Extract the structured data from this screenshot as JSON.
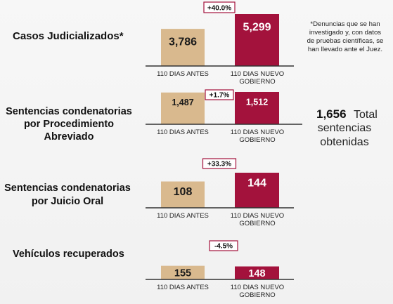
{
  "chart_data": [
    {
      "type": "bar",
      "title": "Casos Judicializados*",
      "categories": [
        "110 DIAS ANTES",
        "110 DIAS NUEVO GOBIERNO"
      ],
      "values": [
        3786,
        5299
      ],
      "value_labels": [
        "3,786",
        "5,299"
      ],
      "change_label": "+40.0%"
    },
    {
      "type": "bar",
      "title": "Sentencias condenatorias por Procedimiento Abreviado",
      "categories": [
        "110 DIAS ANTES",
        "110 DIAS NUEVO GOBIERNO"
      ],
      "values": [
        1487,
        1512
      ],
      "value_labels": [
        "1,487",
        "1,512"
      ],
      "change_label": "+1.7%"
    },
    {
      "type": "bar",
      "title": "Sentencias condenatorias por Juicio Oral",
      "categories": [
        "110 DIAS ANTES",
        "110 DIAS NUEVO GOBIERNO"
      ],
      "values": [
        108,
        144
      ],
      "value_labels": [
        "108",
        "144"
      ],
      "change_label": "+33.3%"
    },
    {
      "type": "bar",
      "title": "Vehículos recuperados",
      "categories": [
        "110 DIAS ANTES",
        "110 DIAS NUEVO GOBIERNO"
      ],
      "values": [
        155,
        148
      ],
      "value_labels": [
        "155",
        "148"
      ],
      "change_label": "-4.5%"
    }
  ],
  "note": "*Denuncias que se han investigado y, con datos de pruebas científicas, se han llevado ante el Juez.",
  "total": {
    "number": "1,656",
    "text": "Total sentencias obtenidas"
  },
  "colors": {
    "before": "#d9b98e",
    "after": "#a3123c",
    "after_text": "#ffffff",
    "before_text": "#1a1a1a",
    "box_border": "#a3123c",
    "axis": "#333333"
  }
}
